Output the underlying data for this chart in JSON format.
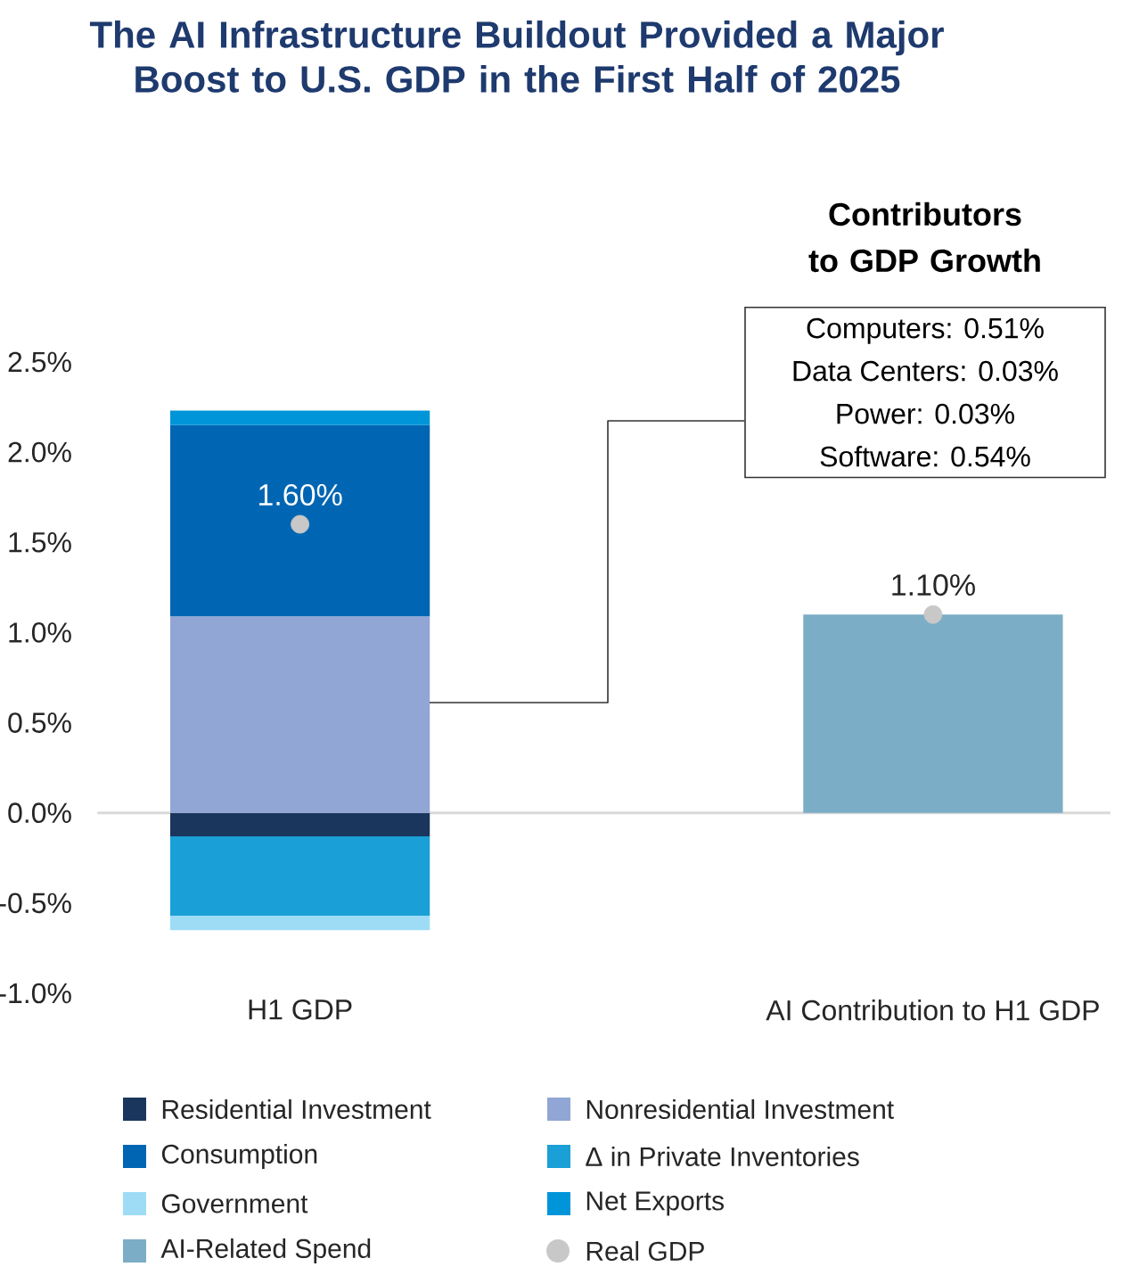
{
  "chart_data": {
    "type": "bar",
    "title": "The AI Infrastructure Buildout Provided a Major Boost to U.S. GDP in the First Half of 2025",
    "categories": [
      "H1 GDP",
      "AI Contribution to H1 GDP"
    ],
    "stacked": true,
    "series": [
      {
        "name": "Residential Investment",
        "color": "#1b365d",
        "values": [
          -0.13,
          null
        ]
      },
      {
        "name": "Nonresidential Investment",
        "color": "#91a6d4",
        "values": [
          1.09,
          null
        ]
      },
      {
        "name": "Consumption",
        "color": "#0066b3",
        "values": [
          1.06,
          null
        ]
      },
      {
        "name": "Δ in Private Inventories",
        "color": "#1a9fd6",
        "values": [
          -0.44,
          null
        ]
      },
      {
        "name": "Government",
        "color": "#9edcf5",
        "values": [
          -0.08,
          null
        ]
      },
      {
        "name": "Net Exports",
        "color": "#0095d9",
        "values": [
          0.08,
          null
        ]
      },
      {
        "name": "AI-Related Spend",
        "color": "#7badc6",
        "values": [
          null,
          1.1
        ]
      },
      {
        "name": "Real GDP",
        "type": "scatter",
        "marker": "circle",
        "color": "#c8c8c8",
        "values": [
          1.6,
          1.1
        ],
        "value_labels": [
          "1.60%",
          "1.10%"
        ]
      }
    ],
    "ylim": [
      -1.0,
      2.5
    ],
    "yticks": [
      {
        "value": -1.0,
        "label": "-1.0%"
      },
      {
        "value": -0.5,
        "label": "-0.5%"
      },
      {
        "value": 0.0,
        "label": "0.0%"
      },
      {
        "value": 0.5,
        "label": "0.5%"
      },
      {
        "value": 1.0,
        "label": "1.0%"
      },
      {
        "value": 1.5,
        "label": "1.5%"
      },
      {
        "value": 2.0,
        "label": "2.0%"
      },
      {
        "value": 2.5,
        "label": "2.5%"
      }
    ],
    "legend": "bottom",
    "annotations": [
      "Contributors to GDP Growth",
      "Computers: 0.51%",
      "Data Centers: 0.03%",
      "Power: 0.03%",
      "Software: 0.54%"
    ]
  }
}
